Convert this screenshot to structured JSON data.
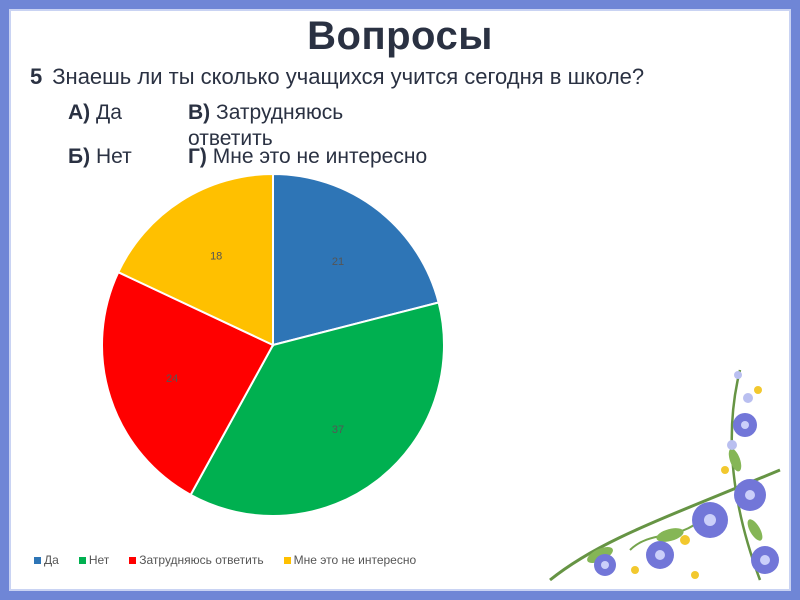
{
  "slide": {
    "title": "Вопросы",
    "question_number": "5",
    "question_text": "Знаешь ли ты сколько учащихся учится сегодня в школе?",
    "answers": [
      {
        "letter": "А)",
        "text": "Да"
      },
      {
        "letter": "Б)",
        "text": "Нет"
      },
      {
        "letter": "В)",
        "text": "Затрудняюсь ответить"
      },
      {
        "letter": "Г)",
        "text": "Мне это не интересно"
      }
    ]
  },
  "chart_data": {
    "type": "pie",
    "categories": [
      "Да",
      "Нет",
      "Затрудняюсь ответить",
      "Мне это не интересно"
    ],
    "values": [
      21,
      37,
      24,
      18
    ],
    "colors": [
      "#2e75b6",
      "#00b050",
      "#ff0000",
      "#ffc000"
    ],
    "data_labels": true,
    "legend_position": "bottom",
    "start_angle": "12 o'clock, clockwise"
  },
  "decor": {
    "frame_color": "#6f86d6",
    "corner_decoration": "flowers-bouquet"
  }
}
